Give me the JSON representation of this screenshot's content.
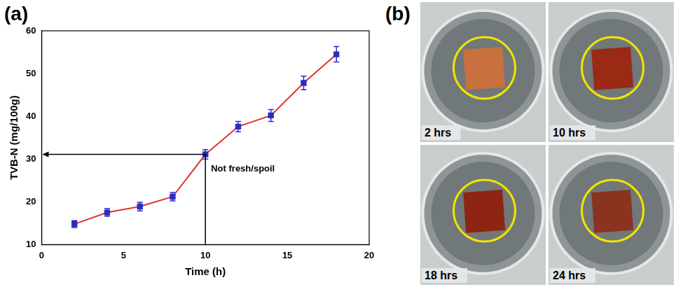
{
  "chart_data": {
    "type": "line",
    "panel_label": "(a)",
    "x_label": "Time (h)",
    "y_label": "TVB-N (mg/100g)",
    "x": [
      2,
      4,
      6,
      8,
      10,
      12,
      14,
      16,
      18
    ],
    "series": [
      {
        "name": "TVB-N",
        "color": "#e0322c",
        "marker_color": "#2b2bc4",
        "marker": "square",
        "line_style": "solid",
        "values": [
          14.8,
          17.5,
          18.9,
          21.2,
          31.1,
          37.6,
          40.2,
          47.8,
          54.5
        ],
        "error": [
          0.8,
          0.9,
          1.0,
          1.0,
          1.1,
          1.2,
          1.4,
          1.6,
          1.8
        ]
      }
    ],
    "xlim": [
      0,
      20
    ],
    "xticks": [
      0,
      5,
      10,
      15,
      20
    ],
    "ylim": [
      10,
      60
    ],
    "yticks": [
      10,
      20,
      30,
      40,
      50,
      60
    ],
    "grid": false,
    "annotation": {
      "text": "Not fresh/spoil",
      "x": 10,
      "y": 31.1
    }
  },
  "photo_panel": {
    "panel_label": "(b)",
    "photos": [
      {
        "label": "2 hrs",
        "color": "#c8703e"
      },
      {
        "label": "10 hrs",
        "color": "#9a2a14"
      },
      {
        "label": "18 hrs",
        "color": "#8e2412"
      },
      {
        "label": "24 hrs",
        "color": "#8a3420"
      }
    ]
  }
}
